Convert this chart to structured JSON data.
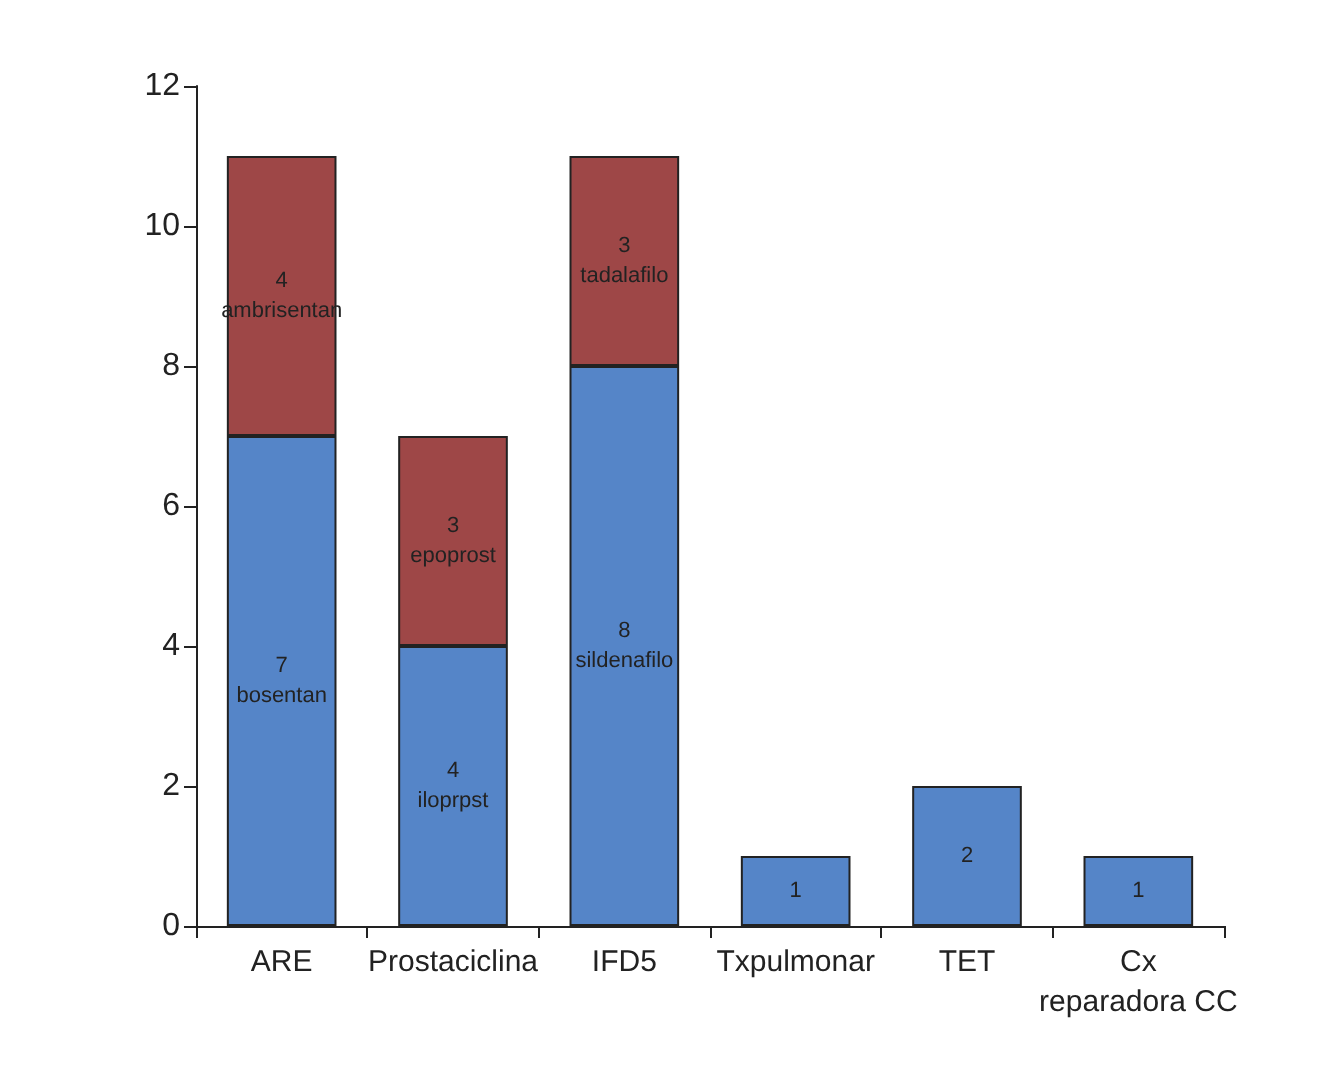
{
  "chart_data": {
    "type": "bar",
    "stacked": true,
    "categories": [
      "ARE",
      "Prostaciclina",
      "IFD5",
      "Txpulmonar",
      "TET",
      "Cx\nreparadora CC"
    ],
    "series": [
      {
        "color": "#5585c8",
        "values": [
          7,
          4,
          8,
          1,
          2,
          1
        ],
        "value_labels": [
          "7\nbosentan",
          "4\niloprpst",
          "8\nsildenafilo",
          "1",
          "2",
          "1"
        ]
      },
      {
        "color": "#9e4747",
        "values": [
          4,
          3,
          3,
          null,
          null,
          null
        ],
        "value_labels": [
          "4\nambrisentan",
          "3\nepoprost",
          "3\ntadalafilo",
          null,
          null,
          null
        ]
      }
    ],
    "ylim": [
      0,
      12
    ],
    "yticks": [
      0,
      2,
      4,
      6,
      8,
      10,
      12
    ],
    "grid": false
  }
}
